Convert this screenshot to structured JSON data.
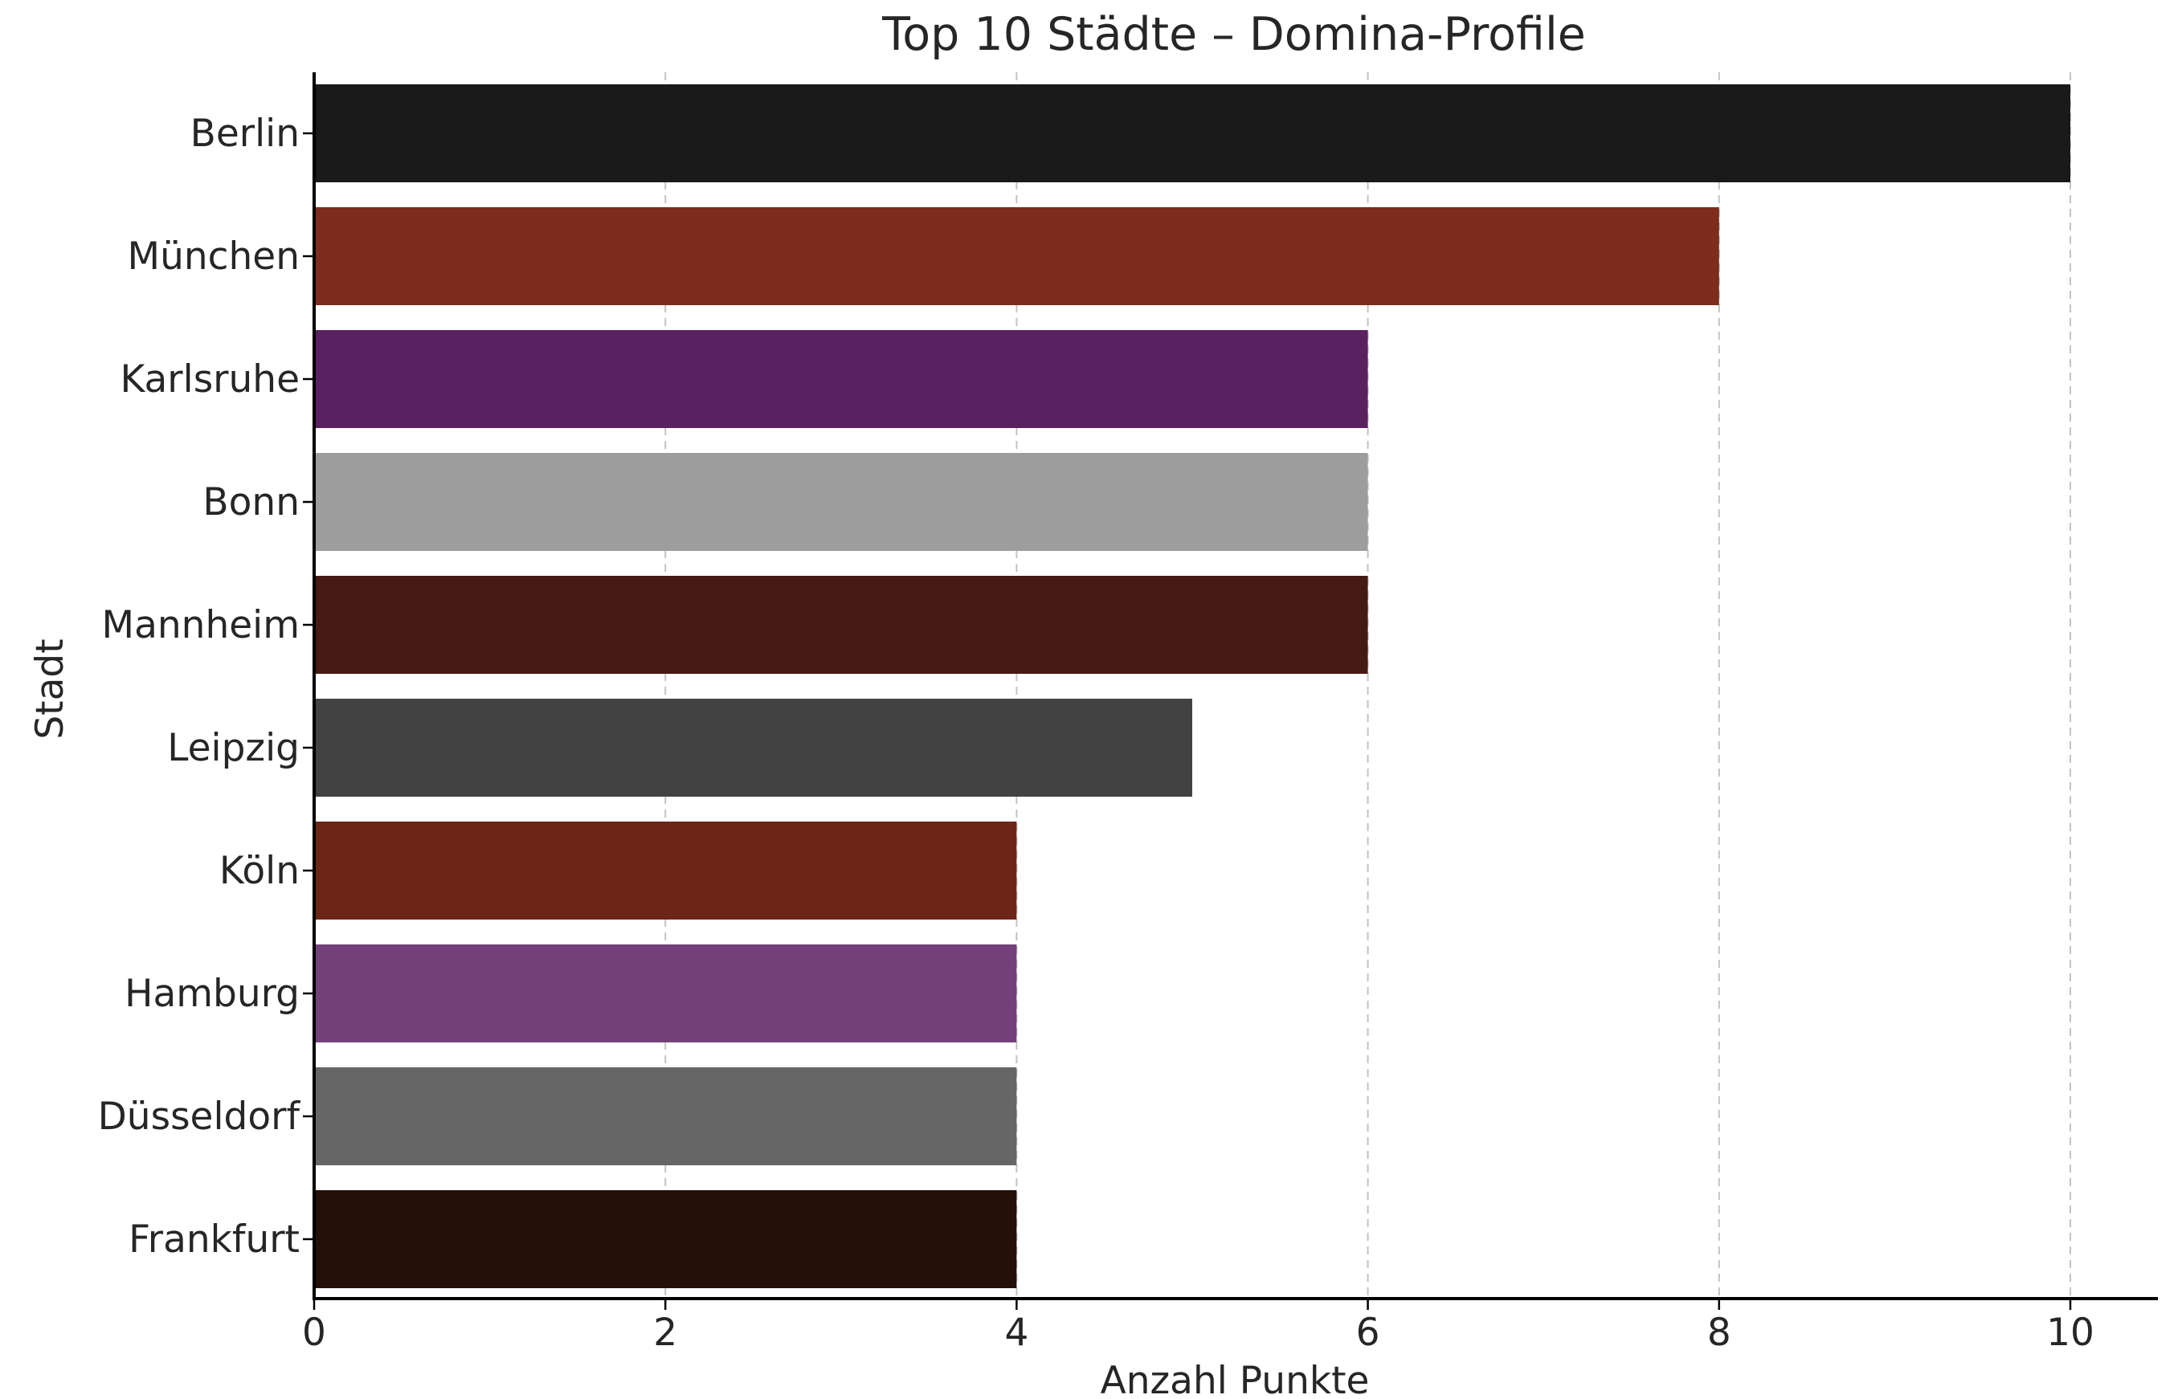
{
  "chart_data": {
    "type": "bar",
    "orientation": "horizontal",
    "title": "Top 10 Städte – Domina-Profile",
    "xlabel": "Anzahl Punkte",
    "ylabel": "Stadt",
    "categories": [
      "Berlin",
      "München",
      "Karlsruhe",
      "Bonn",
      "Mannheim",
      "Leipzig",
      "Köln",
      "Hamburg",
      "Düsseldorf",
      "Frankfurt"
    ],
    "values": [
      10,
      8,
      6,
      6,
      6,
      5,
      4,
      4,
      4,
      4
    ],
    "colors": [
      "#1a1a1a",
      "#7e2c1e",
      "#5a2161",
      "#9d9d9d",
      "#451a13",
      "#424242",
      "#6b2618",
      "#73407a",
      "#666666",
      "#231008"
    ],
    "xlim": [
      0,
      10.5
    ],
    "xticks": [
      0,
      2,
      4,
      6,
      8,
      10
    ],
    "grid": "x",
    "legend": "none"
  }
}
